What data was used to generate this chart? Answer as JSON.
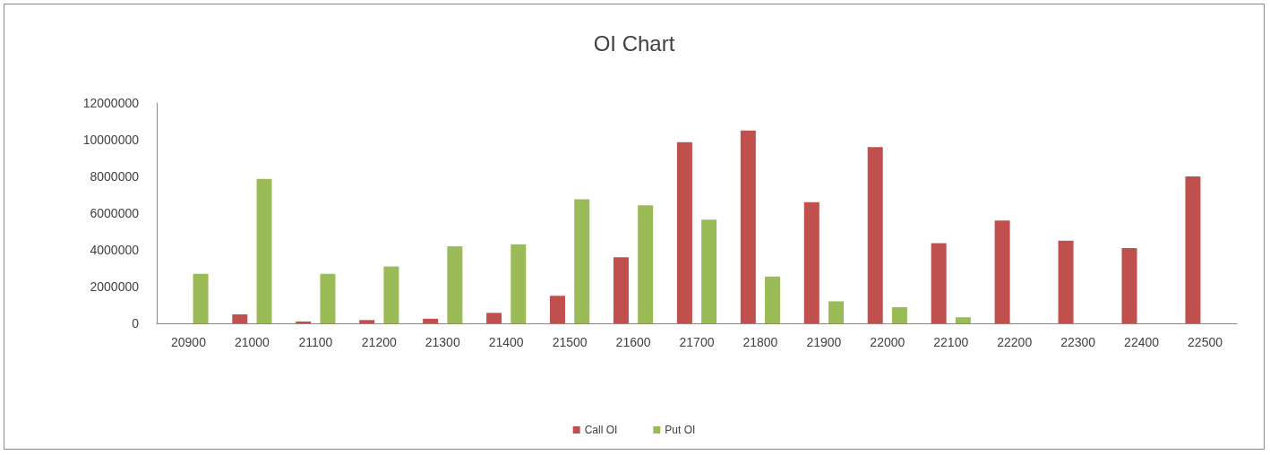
{
  "chart_data": {
    "type": "bar",
    "title": "OI Chart",
    "categories": [
      "20900",
      "21000",
      "21100",
      "21200",
      "21300",
      "21400",
      "21500",
      "21600",
      "21700",
      "21800",
      "21900",
      "22000",
      "22100",
      "22200",
      "22300",
      "22400",
      "22500"
    ],
    "series": [
      {
        "name": "Call OI",
        "color": "#c0504d",
        "values": [
          0,
          490000,
          100000,
          180000,
          250000,
          570000,
          1500000,
          3600000,
          9860000,
          10500000,
          6600000,
          9600000,
          4370000,
          5600000,
          4500000,
          4100000,
          8000000
        ]
      },
      {
        "name": "Put OI",
        "color": "#9bbb59",
        "values": [
          2700000,
          7860000,
          2700000,
          3100000,
          4200000,
          4300000,
          6760000,
          6430000,
          5650000,
          2550000,
          1200000,
          880000,
          330000,
          0,
          0,
          0,
          0
        ]
      }
    ],
    "ylim": [
      0,
      12000000
    ],
    "yticks": [
      0,
      2000000,
      4000000,
      6000000,
      8000000,
      10000000,
      12000000
    ],
    "grid": false,
    "legend": "bottom"
  }
}
